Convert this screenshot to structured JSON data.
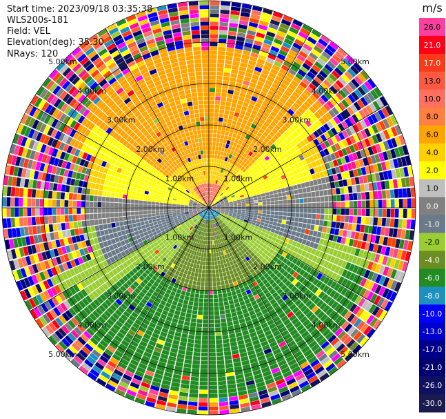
{
  "header": {
    "start_time": "Start time: 2023/09/18 03:35:38",
    "instrument": "WLS200s-181",
    "field": "Field: VEL",
    "elevation": "Elevation(deg): 35.30",
    "nrays": "NRays: 120"
  },
  "chart_data": {
    "type": "polar-ppi",
    "field": "VEL",
    "nrays": 120,
    "range_rings": [
      {
        "km": 1.0,
        "label": "1.00km"
      },
      {
        "km": 2.0,
        "label": "2.00km"
      },
      {
        "km": 3.0,
        "label": "3.00km"
      },
      {
        "km": 4.0,
        "label": "4.00km"
      },
      {
        "km": 5.0,
        "label": "5.00km"
      }
    ],
    "max_range_km": 5.0,
    "spokes_deg": [
      0,
      30,
      60,
      90,
      120,
      150,
      180,
      210,
      240,
      270,
      300,
      330
    ],
    "colorbar": {
      "unit": "m/s",
      "levels": [
        {
          "value": "26.0",
          "color": "#ff3fa0"
        },
        {
          "value": "21.0",
          "color": "#ff0018"
        },
        {
          "value": "17.0",
          "color": "#ff3a1a"
        },
        {
          "value": "13.0",
          "color": "#ff5a40"
        },
        {
          "value": "10.0",
          "color": "#ff7060"
        },
        {
          "value": "8.0",
          "color": "#ff8040"
        },
        {
          "value": "6.0",
          "color": "#ffa400"
        },
        {
          "value": "4.0",
          "color": "#ffd000"
        },
        {
          "value": "2.0",
          "color": "#ffff00"
        },
        {
          "value": "1.0",
          "color": "#bfbfbf"
        },
        {
          "value": "0.0",
          "color": "#808080"
        },
        {
          "value": "-1.0",
          "color": "#6a7a88"
        },
        {
          "value": "-2.0",
          "color": "#9acd32"
        },
        {
          "value": "-4.0",
          "color": "#6b8e23"
        },
        {
          "value": "-6.0",
          "color": "#228b22"
        },
        {
          "value": "-8.0",
          "color": "#1e90c0"
        },
        {
          "value": "-10.0",
          "color": "#0000ff"
        },
        {
          "value": "-13.0",
          "color": "#0000cd"
        },
        {
          "value": "-17.0",
          "color": "#00008b"
        },
        {
          "value": "-21.0",
          "color": "#000070"
        },
        {
          "value": "-26.0",
          "color": "#101060"
        },
        {
          "value": "-30.0",
          "color": "#1a1a50"
        }
      ]
    }
  }
}
